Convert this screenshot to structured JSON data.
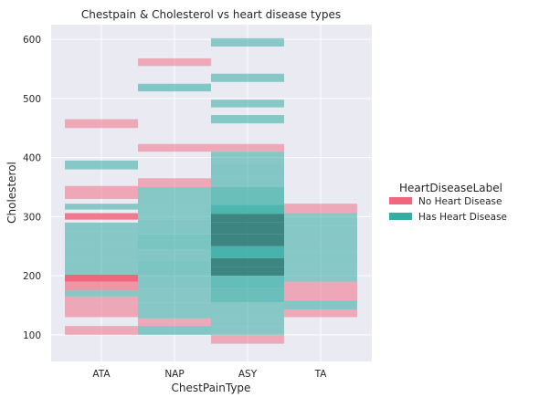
{
  "chart_data": {
    "type": "heatmap",
    "title": "Chestpain & Cholesterol vs heart disease types",
    "xlabel": "ChestPainType",
    "ylabel": "Cholesterol",
    "categories": [
      "ATA",
      "NAP",
      "ASY",
      "TA"
    ],
    "yticks": [
      100,
      200,
      300,
      400,
      500,
      600
    ],
    "ylim": [
      55,
      625
    ],
    "grid": true,
    "legend": {
      "title": "HeartDiseaseLabel",
      "placement": "right",
      "entries": [
        "No Heart Disease",
        "Has Heart Disease"
      ]
    },
    "series": [
      {
        "name": "No Heart Disease",
        "color": "#f0677d",
        "cells": [
          {
            "category": "ATA",
            "y0": 100,
            "y1": 115,
            "level": 0.22
          },
          {
            "category": "ATA",
            "y0": 130,
            "y1": 155,
            "level": 0.25
          },
          {
            "category": "ATA",
            "y0": 155,
            "y1": 165,
            "level": 0.25
          },
          {
            "category": "ATA",
            "y0": 175,
            "y1": 190,
            "level": 0.45
          },
          {
            "category": "ATA",
            "y0": 190,
            "y1": 202,
            "level": 1.0
          },
          {
            "category": "ATA",
            "y0": 295,
            "y1": 306,
            "level": 0.8
          },
          {
            "category": "ATA",
            "y0": 330,
            "y1": 352,
            "level": 0.25
          },
          {
            "category": "ATA",
            "y0": 450,
            "y1": 465,
            "level": 0.22
          },
          {
            "category": "NAP",
            "y0": 115,
            "y1": 128,
            "level": 0.22
          },
          {
            "category": "NAP",
            "y0": 350,
            "y1": 365,
            "level": 0.22
          },
          {
            "category": "NAP",
            "y0": 410,
            "y1": 423,
            "level": 0.22
          },
          {
            "category": "NAP",
            "y0": 555,
            "y1": 568,
            "level": 0.22
          },
          {
            "category": "ASY",
            "y0": 85,
            "y1": 100,
            "level": 0.22
          },
          {
            "category": "ASY",
            "y0": 410,
            "y1": 423,
            "level": 0.22
          },
          {
            "category": "TA",
            "y0": 130,
            "y1": 143,
            "level": 0.22
          },
          {
            "category": "TA",
            "y0": 158,
            "y1": 190,
            "level": 0.25
          },
          {
            "category": "TA",
            "y0": 306,
            "y1": 322,
            "level": 0.22
          }
        ]
      },
      {
        "name": "Has Heart Disease",
        "color": "#36ada4",
        "cells": [
          {
            "category": "ATA",
            "y0": 165,
            "y1": 175,
            "level": 0.3
          },
          {
            "category": "ATA",
            "y0": 202,
            "y1": 225,
            "level": 0.3
          },
          {
            "category": "ATA",
            "y0": 225,
            "y1": 255,
            "level": 0.3
          },
          {
            "category": "ATA",
            "y0": 255,
            "y1": 275,
            "level": 0.3
          },
          {
            "category": "ATA",
            "y0": 275,
            "y1": 290,
            "level": 0.3
          },
          {
            "category": "ATA",
            "y0": 312,
            "y1": 322,
            "level": 0.3
          },
          {
            "category": "ATA",
            "y0": 380,
            "y1": 395,
            "level": 0.3
          },
          {
            "category": "NAP",
            "y0": 100,
            "y1": 115,
            "level": 0.35
          },
          {
            "category": "NAP",
            "y0": 128,
            "y1": 155,
            "level": 0.3
          },
          {
            "category": "NAP",
            "y0": 155,
            "y1": 180,
            "level": 0.3
          },
          {
            "category": "NAP",
            "y0": 180,
            "y1": 200,
            "level": 0.35
          },
          {
            "category": "NAP",
            "y0": 200,
            "y1": 225,
            "level": 0.4
          },
          {
            "category": "NAP",
            "y0": 225,
            "y1": 245,
            "level": 0.35
          },
          {
            "category": "NAP",
            "y0": 245,
            "y1": 270,
            "level": 0.42
          },
          {
            "category": "NAP",
            "y0": 270,
            "y1": 295,
            "level": 0.35
          },
          {
            "category": "NAP",
            "y0": 295,
            "y1": 320,
            "level": 0.32
          },
          {
            "category": "NAP",
            "y0": 320,
            "y1": 340,
            "level": 0.32
          },
          {
            "category": "NAP",
            "y0": 340,
            "y1": 350,
            "level": 0.3
          },
          {
            "category": "NAP",
            "y0": 512,
            "y1": 525,
            "level": 0.35
          },
          {
            "category": "ASY",
            "y0": 100,
            "y1": 115,
            "level": 0.3
          },
          {
            "category": "ASY",
            "y0": 115,
            "y1": 130,
            "level": 0.3
          },
          {
            "category": "ASY",
            "y0": 130,
            "y1": 155,
            "level": 0.3
          },
          {
            "category": "ASY",
            "y0": 155,
            "y1": 180,
            "level": 0.55
          },
          {
            "category": "ASY",
            "y0": 180,
            "y1": 200,
            "level": 0.6
          },
          {
            "category": "ASY",
            "y0": 200,
            "y1": 215,
            "level": 1.0
          },
          {
            "category": "ASY",
            "y0": 215,
            "y1": 230,
            "level": 0.9
          },
          {
            "category": "ASY",
            "y0": 230,
            "y1": 250,
            "level": 0.85
          },
          {
            "category": "ASY",
            "y0": 250,
            "y1": 270,
            "level": 0.95
          },
          {
            "category": "ASY",
            "y0": 270,
            "y1": 290,
            "level": 1.0
          },
          {
            "category": "ASY",
            "y0": 290,
            "y1": 305,
            "level": 0.95
          },
          {
            "category": "ASY",
            "y0": 305,
            "y1": 320,
            "level": 0.8
          },
          {
            "category": "ASY",
            "y0": 320,
            "y1": 350,
            "level": 0.55
          },
          {
            "category": "ASY",
            "y0": 350,
            "y1": 370,
            "level": 0.35
          },
          {
            "category": "ASY",
            "y0": 370,
            "y1": 390,
            "level": 0.35
          },
          {
            "category": "ASY",
            "y0": 390,
            "y1": 410,
            "level": 0.3
          },
          {
            "category": "ASY",
            "y0": 458,
            "y1": 472,
            "level": 0.3
          },
          {
            "category": "ASY",
            "y0": 485,
            "y1": 498,
            "level": 0.3
          },
          {
            "category": "ASY",
            "y0": 528,
            "y1": 542,
            "level": 0.3
          },
          {
            "category": "ASY",
            "y0": 588,
            "y1": 602,
            "level": 0.3
          },
          {
            "category": "TA",
            "y0": 143,
            "y1": 158,
            "level": 0.35
          },
          {
            "category": "TA",
            "y0": 190,
            "y1": 215,
            "level": 0.3
          },
          {
            "category": "TA",
            "y0": 215,
            "y1": 240,
            "level": 0.32
          },
          {
            "category": "TA",
            "y0": 240,
            "y1": 262,
            "level": 0.3
          },
          {
            "category": "TA",
            "y0": 262,
            "y1": 285,
            "level": 0.32
          },
          {
            "category": "TA",
            "y0": 285,
            "y1": 306,
            "level": 0.3
          }
        ]
      }
    ]
  }
}
